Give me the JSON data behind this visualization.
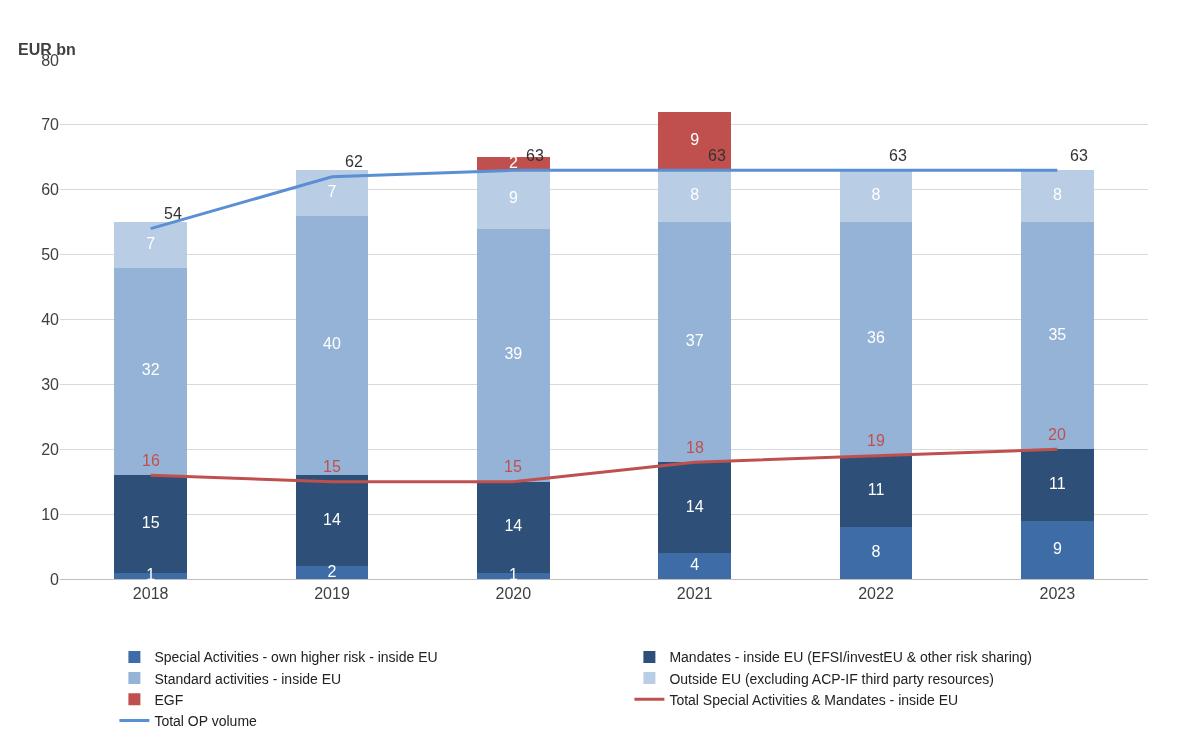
{
  "chart_data": {
    "type": "bar",
    "stacked": true,
    "ylabel": "EUR bn",
    "categories": [
      "2018",
      "2019",
      "2020",
      "2021",
      "2022",
      "2023"
    ],
    "series": [
      {
        "name": "Special Activities - own higher risk - inside EU",
        "color": "#3e6ca6",
        "values": [
          1,
          2,
          1,
          4,
          8,
          9
        ]
      },
      {
        "name": "Mandates - inside EU (EFSI/investEU & other risk sharing)",
        "color": "#2e5078",
        "values": [
          15,
          14,
          14,
          14,
          11,
          11
        ]
      },
      {
        "name": "Standard activities - inside EU",
        "color": "#95b3d7",
        "values": [
          32,
          40,
          39,
          37,
          36,
          35
        ]
      },
      {
        "name": "Outside EU (excluding ACP-IF third party resources)",
        "color": "#b9cde5",
        "values": [
          7,
          7,
          9,
          8,
          8,
          8
        ]
      },
      {
        "name": "EGF",
        "color": "#c0504d",
        "values": [
          null,
          null,
          2,
          9,
          null,
          null
        ]
      },
      {
        "name": "Total Special Activities & Mandates - inside EU",
        "type": "line",
        "color": "#c0504d",
        "values": [
          16,
          15,
          15,
          18,
          19,
          20
        ]
      },
      {
        "name": "Total OP volume",
        "type": "line",
        "color": "#5b8fd4",
        "values": [
          54,
          62,
          63,
          63,
          63,
          63
        ]
      }
    ],
    "ylim": [
      0,
      80
    ],
    "yticks": [
      0,
      10,
      20,
      30,
      40,
      50,
      60,
      70,
      80
    ],
    "grid": "y",
    "legend": "bottom",
    "data_labels": true
  }
}
